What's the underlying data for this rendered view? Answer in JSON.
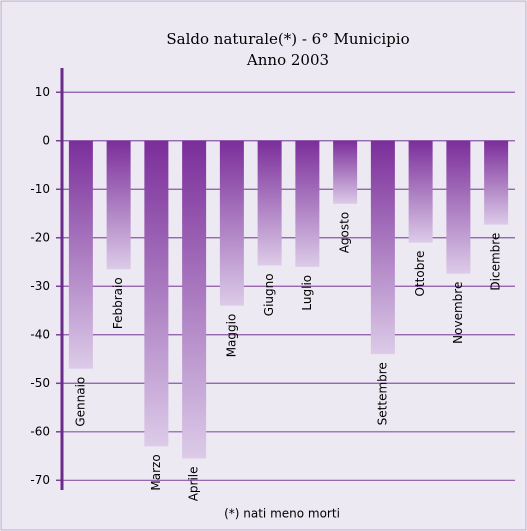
{
  "chart_data": {
    "type": "bar",
    "title": "Saldo naturale(*) - 6° Municipio",
    "subtitle": "Anno 2003",
    "note": "(*) nati meno morti",
    "categories": [
      "Gennaio",
      "Febbraio",
      "Marzo",
      "Aprile",
      "Maggio",
      "Giugno",
      "Luglio",
      "Agosto",
      "Settembre",
      "Ottobre",
      "Novembre",
      "Dicembre"
    ],
    "values": [
      -47,
      -26.5,
      -63,
      -65.5,
      -34,
      -25.7,
      -26,
      -13,
      -44,
      -21,
      -27.4,
      -17.3
    ],
    "color": "#7b2e9a",
    "ylim": [
      -72,
      15
    ],
    "yticks": [
      10,
      0,
      -10,
      -20,
      -30,
      -40,
      -50,
      -60,
      -70
    ],
    "grid": true
  }
}
